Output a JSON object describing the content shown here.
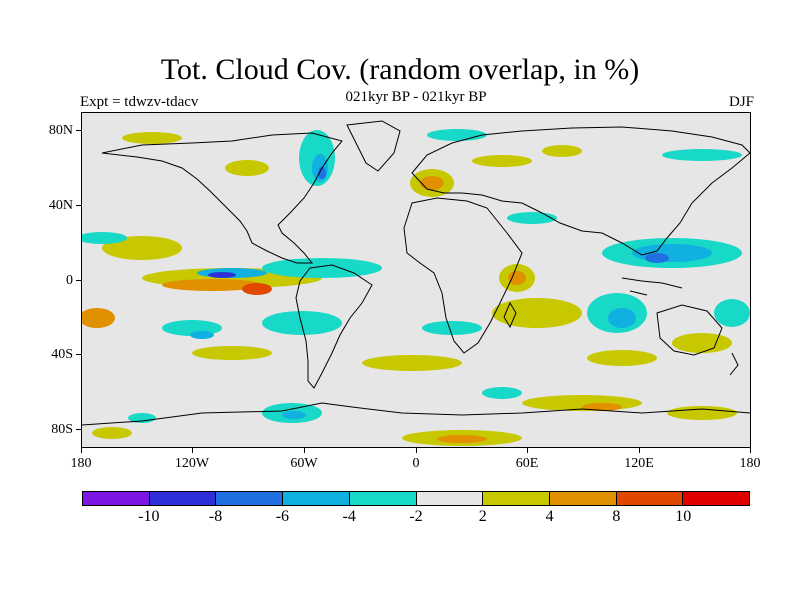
{
  "title": "Tot. Cloud Cov. (random overlap, in %)",
  "subtitle": "021kyr BP - 021kyr BP",
  "left_label": "Expt = tdwzv-tdacv",
  "right_label": "DJF",
  "map": {
    "projection": "cylindrical equidistant",
    "lat_range": [
      -90,
      90
    ],
    "lon_range": [
      -180,
      180
    ],
    "lat_ticks": [
      "80N",
      "40N",
      "0",
      "40S",
      "80S"
    ],
    "lon_ticks": [
      "180",
      "120W",
      "60W",
      "0",
      "60E",
      "120E",
      "180"
    ]
  },
  "colorbar": {
    "levels": [
      "-10",
      "-8",
      "-6",
      "-4",
      "-2",
      "2",
      "4",
      "8",
      "10"
    ],
    "colors": [
      "#7a17e0",
      "#2f2fd8",
      "#1f6fe0",
      "#10b0e0",
      "#18d8c8",
      "#e6e6e6",
      "#c8c800",
      "#e09000",
      "#e04800",
      "#e00000"
    ]
  }
}
